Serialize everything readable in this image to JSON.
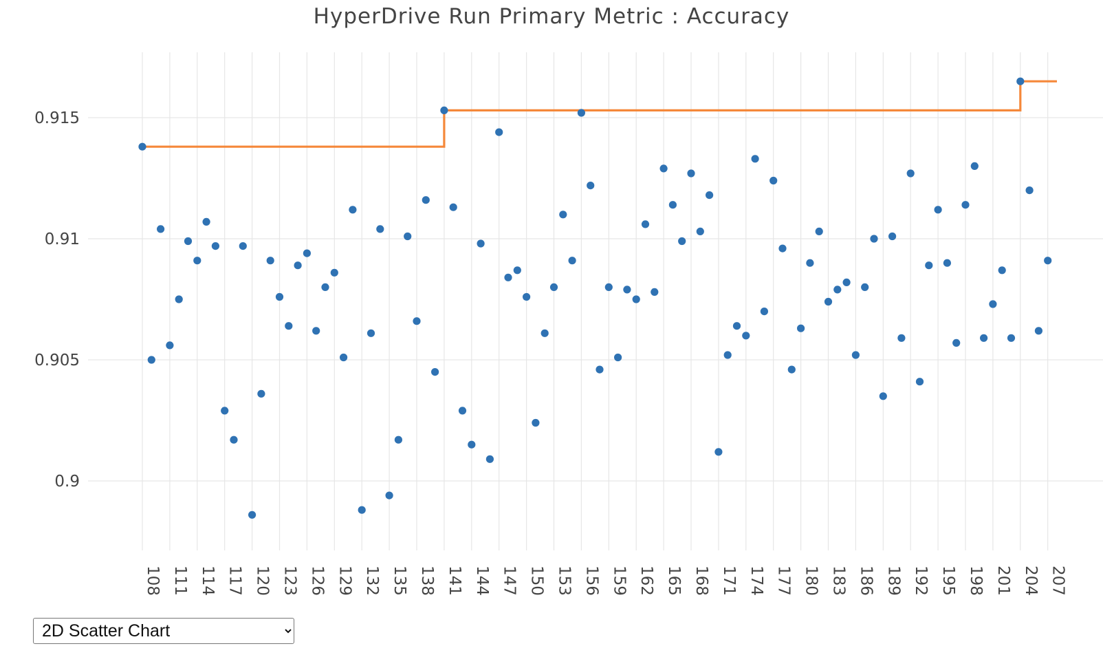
{
  "header": {
    "title": "HyperDrive Run Primary Metric : Accuracy"
  },
  "controls": {
    "view_select": {
      "selected": "2D Scatter Chart"
    }
  },
  "chart_data": {
    "type": "scatter",
    "title": "HyperDrive Run Primary Metric : Accuracy",
    "xlabel": "",
    "ylabel": "",
    "xlim": [
      108,
      208
    ],
    "ylim": [
      0.8972,
      0.9177
    ],
    "x_ticks": [
      108,
      111,
      114,
      117,
      120,
      123,
      126,
      129,
      132,
      135,
      138,
      141,
      144,
      147,
      150,
      153,
      156,
      159,
      162,
      165,
      168,
      171,
      174,
      177,
      180,
      183,
      186,
      189,
      192,
      195,
      198,
      201,
      204,
      207
    ],
    "y_ticks": [
      {
        "value": 0.9,
        "label": "0.9"
      },
      {
        "value": 0.905,
        "label": "0.905"
      },
      {
        "value": 0.91,
        "label": "0.91"
      },
      {
        "value": 0.915,
        "label": "0.915"
      }
    ],
    "grid": true,
    "legend": "none",
    "colors": {
      "points": "#2f72b3",
      "best_line": "#f5883a",
      "grid": "#e6e6e6"
    },
    "series": [
      {
        "type": "scatter",
        "x": [
          108,
          109,
          110,
          111,
          112,
          113,
          114,
          115,
          116,
          117,
          118,
          119,
          120,
          121,
          122,
          123,
          124,
          125,
          126,
          127,
          128,
          129,
          130,
          131,
          132,
          133,
          134,
          135,
          136,
          137,
          138,
          139,
          140,
          141,
          142,
          143,
          144,
          145,
          146,
          147,
          148,
          149,
          150,
          151,
          152,
          153,
          154,
          155,
          156,
          157,
          158,
          159,
          160,
          161,
          162,
          163,
          164,
          165,
          166,
          167,
          168,
          169,
          170,
          171,
          172,
          173,
          174,
          175,
          176,
          177,
          178,
          179,
          180,
          181,
          182,
          183,
          184,
          185,
          186,
          187,
          188,
          189,
          190,
          191,
          192,
          193,
          194,
          195,
          196,
          197,
          198,
          199,
          200,
          201,
          202,
          203,
          204,
          205,
          206,
          207
        ],
        "y": [
          0.9138,
          0.905,
          0.9104,
          0.9056,
          0.9075,
          0.9099,
          0.9091,
          0.9107,
          0.9097,
          0.9029,
          0.9017,
          0.9097,
          0.8986,
          0.9036,
          0.9091,
          0.9076,
          0.9064,
          0.9089,
          0.9094,
          0.9062,
          0.908,
          0.9086,
          0.9051,
          0.9112,
          0.8988,
          0.9061,
          0.9104,
          0.8994,
          0.9017,
          0.9101,
          0.9066,
          0.9116,
          0.9045,
          0.9153,
          0.9113,
          0.9029,
          0.9015,
          0.9098,
          0.9009,
          0.9144,
          0.9084,
          0.9087,
          0.9076,
          0.9024,
          0.9061,
          0.908,
          0.911,
          0.9091,
          0.9152,
          0.9122,
          0.9046,
          0.908,
          0.9051,
          0.9079,
          0.9075,
          0.9106,
          0.9078,
          0.9129,
          0.9114,
          0.9099,
          0.9127,
          0.9103,
          0.9118,
          0.9012,
          0.9052,
          0.9064,
          0.906,
          0.9133,
          0.907,
          0.9124,
          0.9096,
          0.9046,
          0.9063,
          0.909,
          0.9103,
          0.9074,
          0.9079,
          0.9082,
          0.9052,
          0.908,
          0.91,
          0.9035,
          0.9101,
          0.9059,
          0.9127,
          0.9041,
          0.9089,
          0.9112,
          0.909,
          0.9057,
          0.9114,
          0.913,
          0.9059,
          0.9073,
          0.9087,
          0.9059,
          0.9165,
          0.912,
          0.9062,
          0.9091
        ]
      },
      {
        "type": "line-step",
        "description": "best so far",
        "points": [
          [
            108,
            0.9138
          ],
          [
            141,
            0.9138
          ],
          [
            141,
            0.9153
          ],
          [
            204,
            0.9153
          ],
          [
            204,
            0.9165
          ],
          [
            208,
            0.9165
          ]
        ]
      }
    ]
  }
}
